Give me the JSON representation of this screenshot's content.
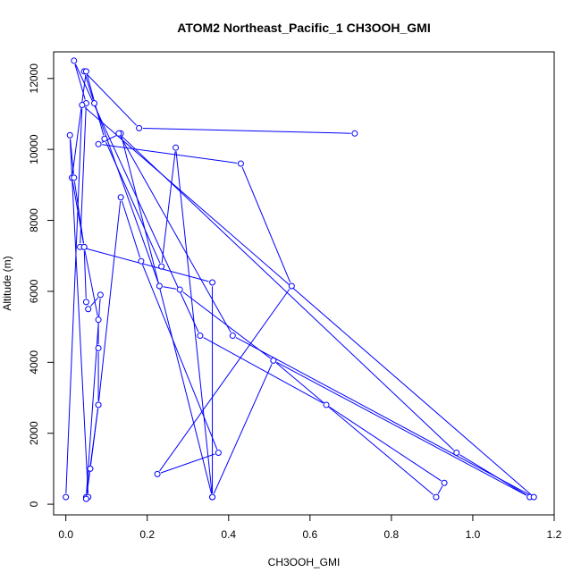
{
  "chart_data": {
    "type": "line",
    "title": "ATOM2 Northeast_Pacific_1 CH3OOH_GMI",
    "xlabel": "CH3OOH_GMI",
    "ylabel": "Altitude (m)",
    "xlim": [
      -0.03,
      1.2
    ],
    "ylim": [
      -300,
      12750
    ],
    "xticks": [
      0.0,
      0.2,
      0.4,
      0.6,
      0.8,
      1.0,
      1.2
    ],
    "yticks": [
      0,
      2000,
      4000,
      6000,
      8000,
      10000,
      12000
    ],
    "xtick_labels": [
      "0.0",
      "0.2",
      "0.4",
      "0.6",
      "0.8",
      "1.0",
      "1.2"
    ],
    "ytick_labels": [
      "0",
      "2000",
      "4000",
      "6000",
      "8000",
      "10000",
      "12000"
    ],
    "grid": false,
    "legend": "none",
    "color": "#0000ff",
    "series": [
      {
        "x": [
          0.71,
          0.18,
          0.045,
          0.07,
          0.23,
          0.28,
          0.51,
          0.91,
          0.93,
          0.64,
          0.33,
          0.02,
          0.05,
          0.035,
          0.36,
          0.36,
          0.27,
          0.235,
          0.095,
          0.05,
          0.015,
          0.045,
          0.05,
          0.055,
          0.085,
          0.05,
          0.08,
          0.08,
          0.08,
          0.045,
          0.02,
          0.01,
          0.055,
          0.05,
          0.06,
          0.08,
          0.135,
          0.185,
          0.375,
          0.225,
          0.555,
          0.43,
          0.08,
          0.135,
          0.36,
          0.51,
          1.14,
          0.96,
          0.13,
          0.41,
          1.15,
          0.04,
          0.0
        ],
        "y": [
          10450,
          10600,
          12200,
          11300,
          6150,
          6050,
          4050,
          200,
          600,
          2800,
          4750,
          12500,
          11300,
          7250,
          6250,
          200,
          10050,
          6700,
          10300,
          12200,
          9200,
          7250,
          5700,
          5500,
          5900,
          200,
          2800,
          4400,
          5200,
          7250,
          9200,
          10400,
          200,
          150,
          1000,
          2800,
          8650,
          6850,
          1450,
          850,
          6150,
          9600,
          10150,
          10450,
          200,
          4050,
          200,
          1450,
          10450,
          4750,
          200,
          11250,
          200
        ]
      }
    ]
  }
}
